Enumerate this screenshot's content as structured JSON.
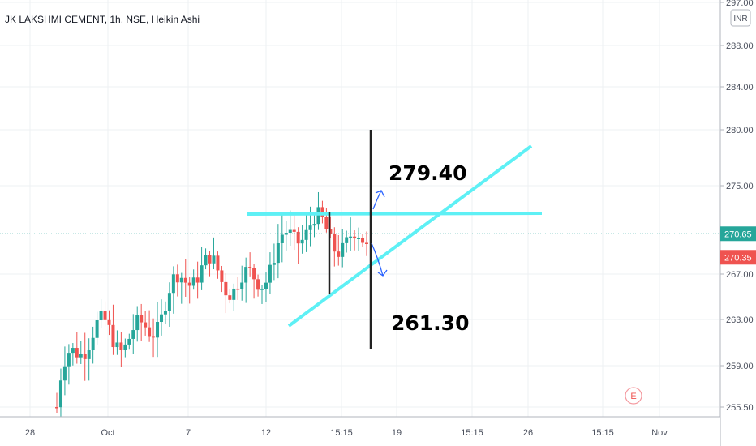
{
  "title": "JK LAKSHMI CEMENT, 1h, NSE, Heikin Ashi",
  "currency_badge": "INR",
  "event_badge": "E",
  "colors": {
    "up": "#26a69a",
    "down": "#ef5350",
    "trendline": "#5ef0f5",
    "marker": "#222222",
    "last_price_line": "#26a69a",
    "current_tag": "#26a69a",
    "prev_tag": "#ef5350"
  },
  "price_tags": {
    "current": "270.65",
    "previous": "270.35"
  },
  "annotations": {
    "upper_target": "279.40",
    "lower_target": "261.30"
  },
  "chart_data": {
    "type": "candlestick",
    "chart_style": "Heikin Ashi",
    "interval": "1h",
    "exchange": "NSE",
    "symbol": "JK LAKSHMI CEMENT",
    "ylim": [
      254.5,
      297.0
    ],
    "y_ticks": [
      "297.00",
      "288.00",
      "284.00",
      "280.00",
      "275.00",
      "270.65",
      "270.35",
      "267.00",
      "263.00",
      "259.00",
      "255.50"
    ],
    "x_ticks": [
      "28",
      "Oct",
      "7",
      "12",
      "15:15",
      "19",
      "15:15",
      "26",
      "15:15",
      "Nov"
    ],
    "last_price": 270.65,
    "candles_summary": "Uptrend from ~255 (late Sep) to ~271 (mid Oct), consolidating 266–272",
    "lines": [
      {
        "name": "resistance",
        "from_price": 272.4,
        "to_price": 272.6,
        "orientation": "horizontal"
      },
      {
        "name": "rising support",
        "from_price": 262.5,
        "to_price": 279.0,
        "orientation": "ascending"
      }
    ],
    "targets": {
      "up": 279.4,
      "down": 261.3
    }
  }
}
